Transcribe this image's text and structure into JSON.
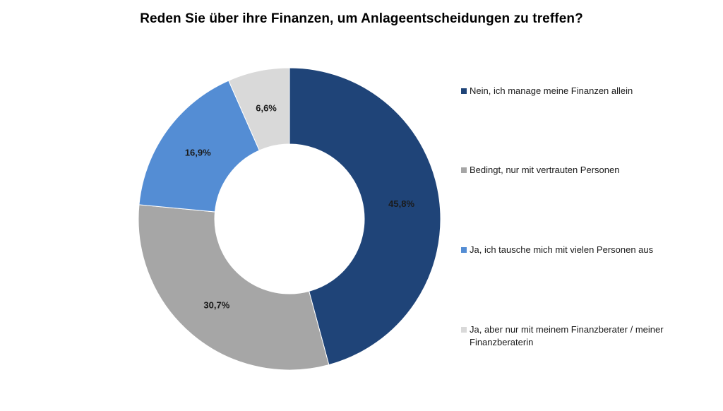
{
  "chart_data": {
    "type": "pie",
    "title": "Reden Sie über ihre Finanzen, um Anlageentscheidungen zu treffen?",
    "categories": [
      "Nein, ich manage meine Finanzen allein",
      "Bedingt, nur mit vertrauten Personen",
      "Ja, ich tausche mich mit vielen Personen aus",
      "Ja, aber nur mit meinem Finanzberater / meiner Finanzberaterin"
    ],
    "values": [
      45.8,
      30.7,
      16.9,
      6.6
    ],
    "data_labels": [
      "45,8%",
      "30,7%",
      "16,9%",
      "6,6%"
    ],
    "colors": [
      "#1f4478",
      "#a6a6a6",
      "#548dd4",
      "#d9d9d9"
    ],
    "donut": true,
    "start_angle": "12 o'clock",
    "direction": "clockwise",
    "legend_position": "right"
  }
}
